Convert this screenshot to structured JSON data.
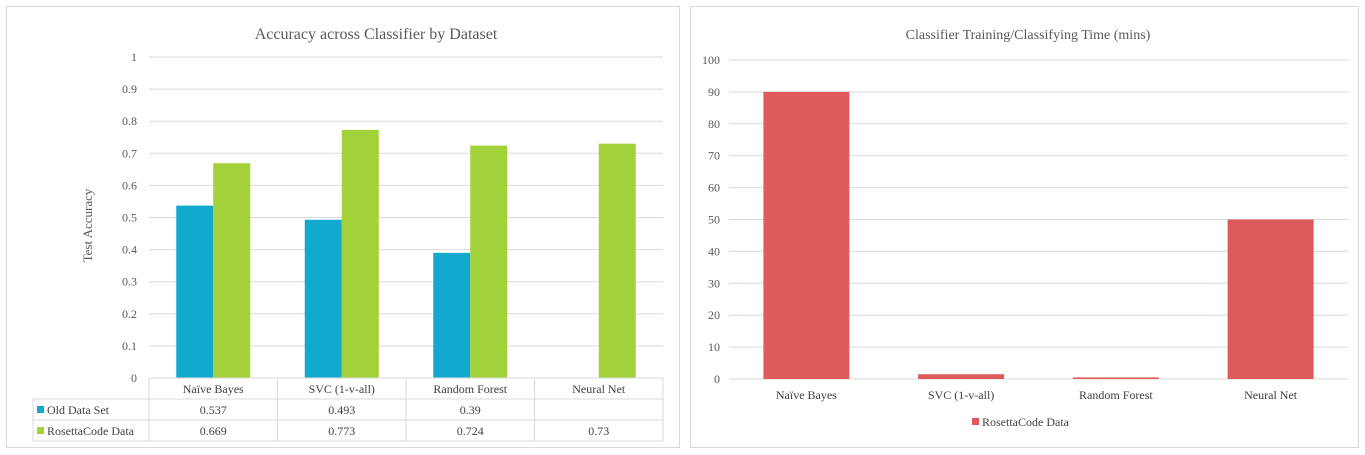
{
  "colors": {
    "old": "#12a9cf",
    "rosetta": "#a3d13a",
    "time": "#df5a5a",
    "grid": "#d9d9d9",
    "text": "#595959"
  },
  "chart_data": [
    {
      "type": "bar",
      "title": "Accuracy across Classifier by Dataset",
      "xlabel": "",
      "ylabel": "Test Accuracy",
      "ylim": [
        0,
        1
      ],
      "yticks": [
        "0",
        "0.1",
        "0.2",
        "0.3",
        "0.4",
        "0.5",
        "0.6",
        "0.7",
        "0.8",
        "0.9",
        "1"
      ],
      "categories": [
        "Naïve Bayes",
        "SVC (1-v-all)",
        "Random Forest",
        "Neural Net"
      ],
      "series": [
        {
          "name": "Old Data Set",
          "values": [
            0.537,
            0.493,
            0.39,
            null
          ],
          "labels": [
            "0.537",
            "0.493",
            "0.39",
            ""
          ]
        },
        {
          "name": "RosettaCode Data",
          "values": [
            0.669,
            0.773,
            0.724,
            0.73
          ],
          "labels": [
            "0.669",
            "0.773",
            "0.724",
            "0.73"
          ]
        }
      ],
      "grid": true,
      "legend": "data-table"
    },
    {
      "type": "bar",
      "title": "Classifier Training/Classifying Time (mins)",
      "xlabel": "",
      "ylabel": "",
      "ylim": [
        0,
        100
      ],
      "yticks": [
        "0",
        "10",
        "20",
        "30",
        "40",
        "50",
        "60",
        "70",
        "80",
        "90",
        "100"
      ],
      "categories": [
        "Naïve Bayes",
        "SVC (1-v-all)",
        "Random Forest",
        "Neural Net"
      ],
      "series": [
        {
          "name": "RosettaCode Data",
          "values": [
            90,
            1.5,
            0.5,
            50
          ]
        }
      ],
      "grid": true,
      "legend": "bottom"
    }
  ]
}
